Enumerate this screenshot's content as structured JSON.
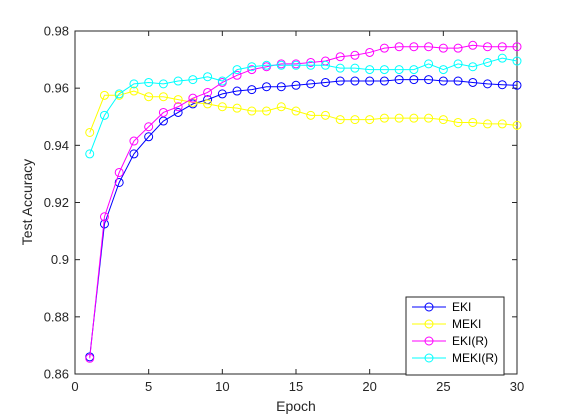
{
  "chart_data": {
    "type": "line",
    "xlabel": "Epoch",
    "ylabel": "Test Accuracy",
    "xlim": [
      0,
      30
    ],
    "ylim": [
      0.86,
      0.98
    ],
    "xticks": [
      0,
      5,
      10,
      15,
      20,
      25,
      30
    ],
    "xtick_labels": [
      "0",
      "5",
      "10",
      "15",
      "20",
      "25",
      "30"
    ],
    "yticks": [
      0.86,
      0.88,
      0.9,
      0.92,
      0.94,
      0.96,
      0.98
    ],
    "ytick_labels": [
      "0.86",
      "0.88",
      "0.9",
      "0.92",
      "0.94",
      "0.96",
      "0.98"
    ],
    "grid": false,
    "legend_position": "bottom-right",
    "marker": "circle",
    "x": [
      1,
      2,
      3,
      4,
      5,
      6,
      7,
      8,
      9,
      10,
      11,
      12,
      13,
      14,
      15,
      16,
      17,
      18,
      19,
      20,
      21,
      22,
      23,
      24,
      25,
      26,
      27,
      28,
      29,
      30
    ],
    "series": [
      {
        "name": "EKI",
        "color": "#0000ff",
        "values": [
          0.866,
          0.9125,
          0.927,
          0.937,
          0.943,
          0.9485,
          0.9515,
          0.9545,
          0.956,
          0.958,
          0.959,
          0.9595,
          0.9605,
          0.9605,
          0.961,
          0.9615,
          0.962,
          0.9625,
          0.9625,
          0.9625,
          0.9625,
          0.963,
          0.963,
          0.963,
          0.9625,
          0.9625,
          0.962,
          0.9615,
          0.9612,
          0.961
        ]
      },
      {
        "name": "MEKI",
        "color": "#ffff00",
        "values": [
          0.9445,
          0.9575,
          0.9575,
          0.959,
          0.957,
          0.957,
          0.956,
          0.955,
          0.9545,
          0.9535,
          0.953,
          0.952,
          0.952,
          0.9535,
          0.952,
          0.9505,
          0.9505,
          0.949,
          0.949,
          0.949,
          0.9495,
          0.9495,
          0.9495,
          0.9495,
          0.949,
          0.948,
          0.948,
          0.9475,
          0.9475,
          0.947
        ]
      },
      {
        "name": "EKI(R)",
        "color": "#ff00ff",
        "values": [
          0.8655,
          0.915,
          0.9305,
          0.9415,
          0.9465,
          0.9515,
          0.9535,
          0.9565,
          0.9585,
          0.962,
          0.9645,
          0.9665,
          0.9675,
          0.9685,
          0.9685,
          0.969,
          0.9695,
          0.971,
          0.9715,
          0.9725,
          0.974,
          0.9745,
          0.9745,
          0.9745,
          0.974,
          0.974,
          0.975,
          0.9745,
          0.9745,
          0.9745
        ]
      },
      {
        "name": "MEKI(R)",
        "color": "#00ffff",
        "values": [
          0.937,
          0.9505,
          0.958,
          0.9615,
          0.962,
          0.9615,
          0.9625,
          0.963,
          0.964,
          0.9625,
          0.9665,
          0.9675,
          0.968,
          0.968,
          0.968,
          0.968,
          0.968,
          0.967,
          0.967,
          0.9665,
          0.9665,
          0.9665,
          0.9665,
          0.9685,
          0.9665,
          0.9685,
          0.9675,
          0.969,
          0.9705,
          0.9695
        ]
      }
    ]
  }
}
